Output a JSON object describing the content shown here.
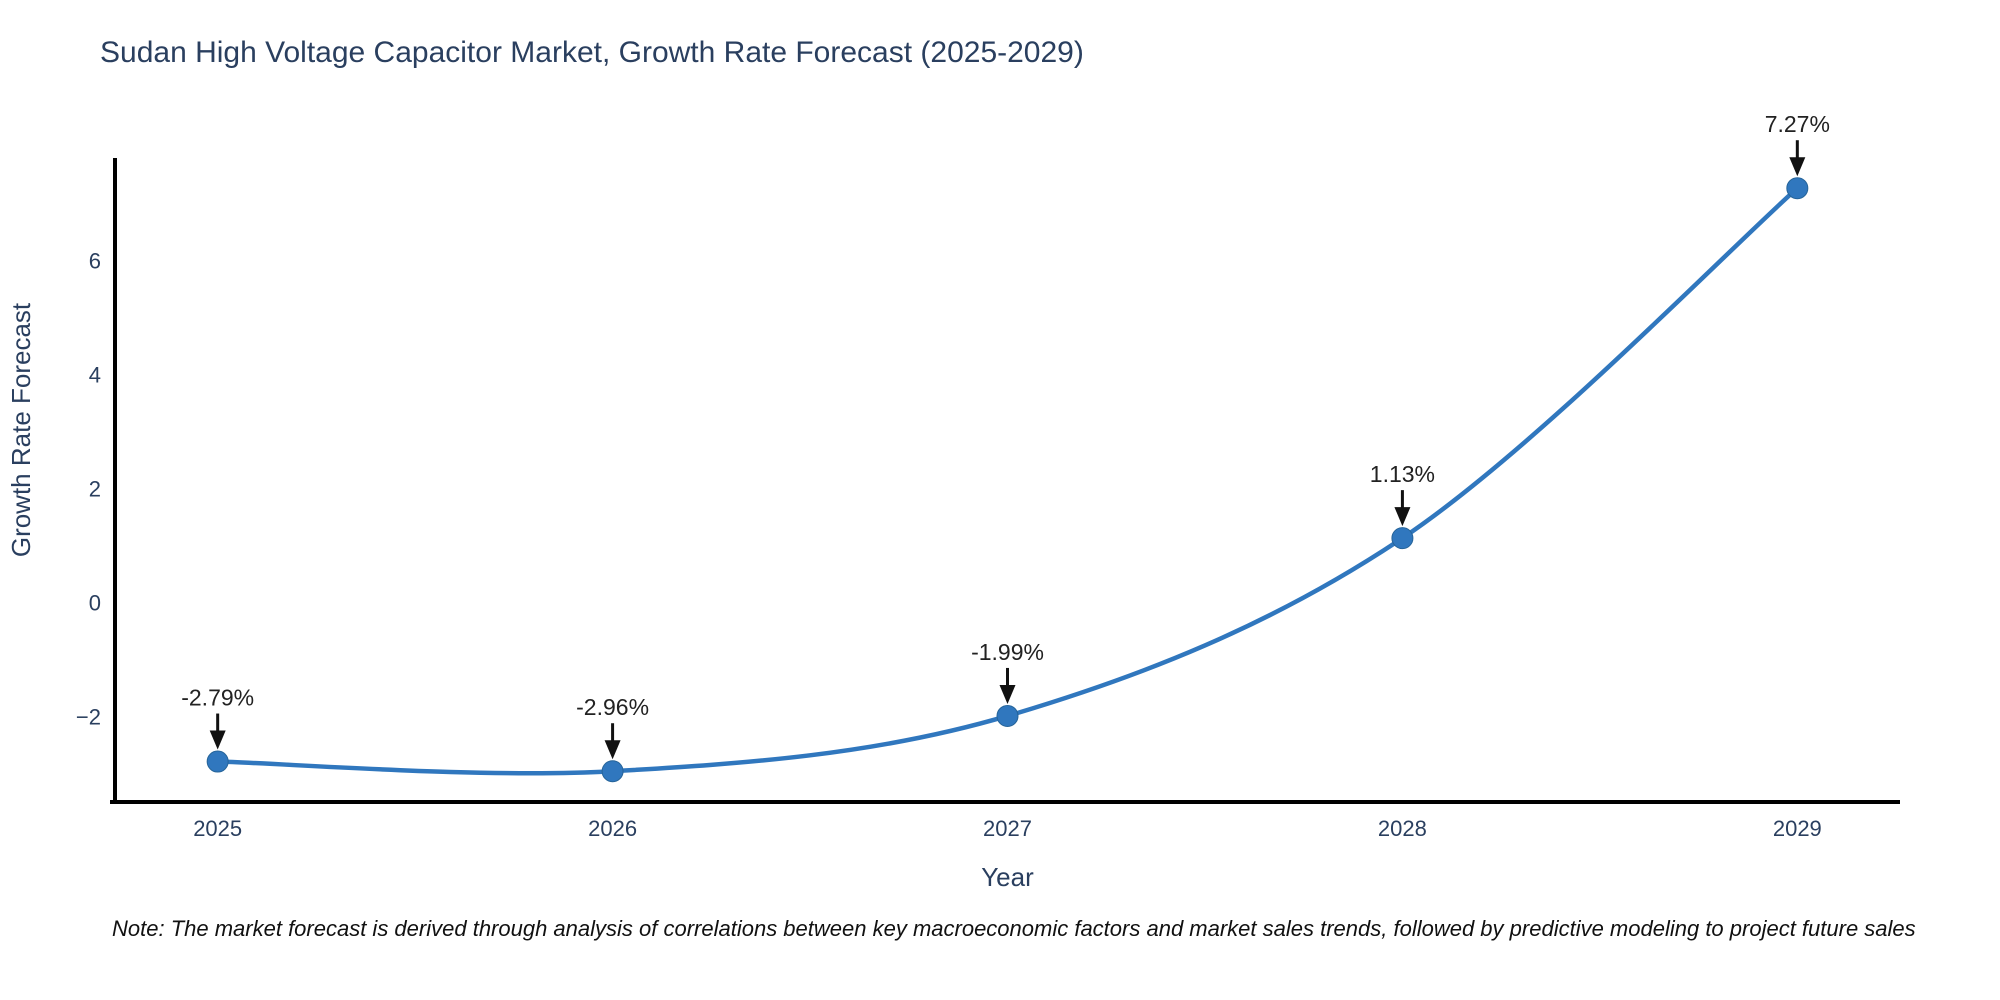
{
  "note": "Note: The market forecast is derived through analysis of correlations between key macroeconomic factors and market sales trends, followed by predictive modeling to project future sales",
  "chart_data": {
    "type": "line",
    "title": "Sudan High Voltage Capacitor Market, Growth Rate Forecast (2025-2029)",
    "xlabel": "Year",
    "ylabel": "Growth Rate Forecast",
    "x": [
      2025,
      2026,
      2027,
      2028,
      2029
    ],
    "y": [
      -2.79,
      -2.96,
      -1.99,
      1.13,
      7.27
    ],
    "point_labels": [
      "-2.79%",
      "-2.96%",
      "-1.99%",
      "1.13%",
      "7.27%"
    ],
    "xtick_labels": [
      "2025",
      "2026",
      "2027",
      "2028",
      "2029"
    ],
    "ytick_values": [
      6,
      4,
      2,
      0,
      -2
    ],
    "ytick_labels": [
      "6",
      "4",
      "2",
      "0",
      "−2"
    ],
    "xlim": [
      2024.74,
      2029.26
    ],
    "ylim": [
      -3.5,
      7.8
    ],
    "grid": false,
    "legend": "none",
    "line_shape": "spline",
    "colors": {
      "line": "#3077be",
      "marker": "#3077be",
      "marker_edge": "#266499",
      "axis": "#000000",
      "tick_text": "#2a3f5f",
      "title_text": "#2a3f5f",
      "annotation_text": "#222222",
      "arrow": "#111111",
      "background": "#ffffff"
    }
  }
}
